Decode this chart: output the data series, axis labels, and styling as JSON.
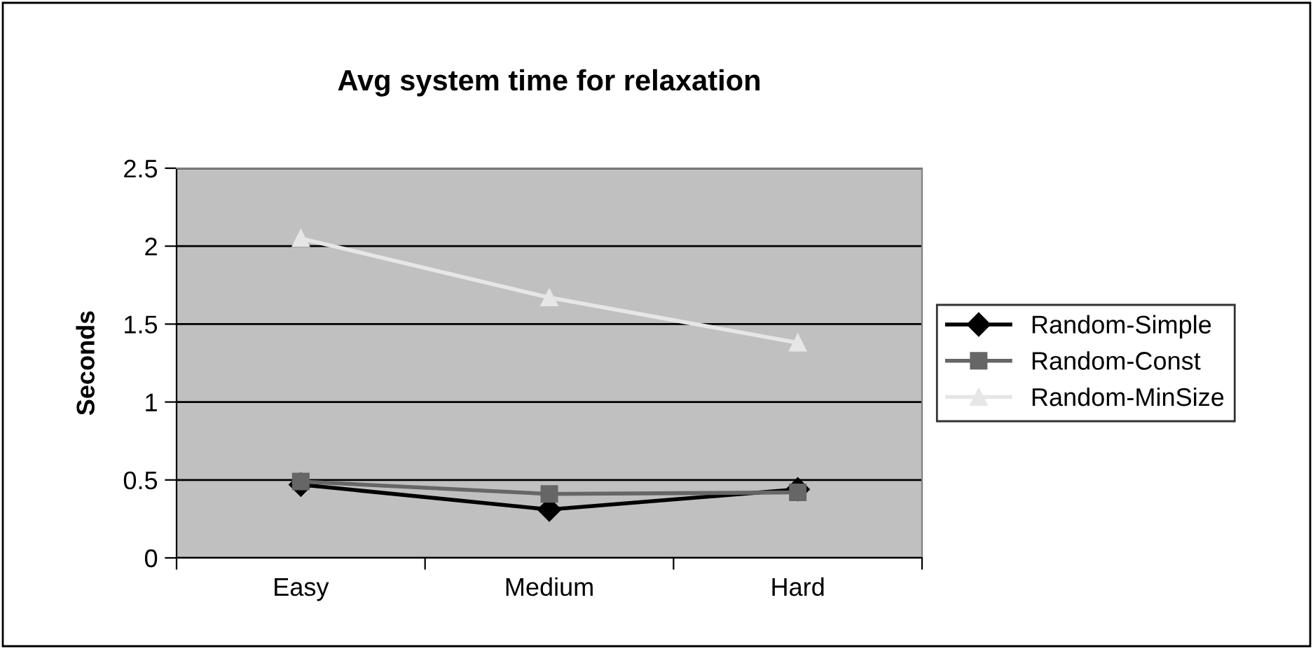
{
  "chart_data": {
    "type": "line",
    "title": "Avg system time for relaxation",
    "ylabel": "Seconds",
    "categories": [
      "Easy",
      "Medium",
      "Hard"
    ],
    "series": [
      {
        "name": "Random-Simple",
        "color": "#000000",
        "marker": "diamond",
        "values": [
          0.47,
          0.31,
          0.44
        ]
      },
      {
        "name": "Random-Const",
        "color": "#666666",
        "marker": "square",
        "values": [
          0.49,
          0.41,
          0.42
        ]
      },
      {
        "name": "Random-MinSize",
        "color": "#e6e6e6",
        "marker": "triangle",
        "values": [
          2.05,
          1.67,
          1.38
        ]
      }
    ],
    "ylim": [
      0,
      2.5
    ],
    "yticks": [
      0,
      0.5,
      1,
      1.5,
      2,
      2.5
    ],
    "grid": "y",
    "legend": "right"
  }
}
